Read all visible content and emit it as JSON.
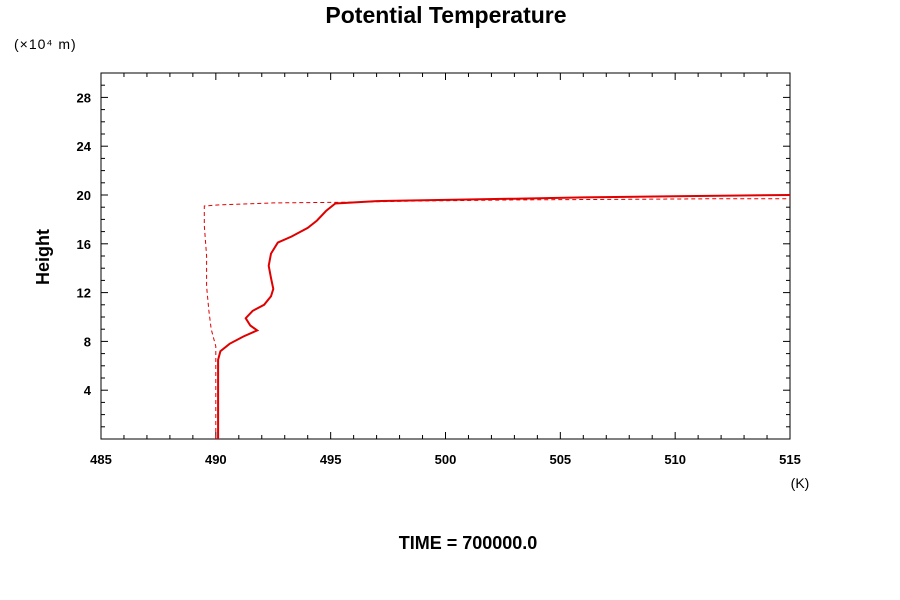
{
  "chart_data": {
    "type": "line",
    "title": "Potential Temperature",
    "ylabel": "Height",
    "y_unit": "(×10⁴ m)",
    "x_unit": "(K)",
    "footer": "TIME = 700000.0",
    "xlim": [
      485,
      515
    ],
    "ylim": [
      0,
      30
    ],
    "x_ticks": [
      485,
      490,
      495,
      500,
      505,
      510,
      515
    ],
    "y_ticks": [
      4,
      8,
      12,
      16,
      20,
      24,
      28
    ],
    "grid": false,
    "line_color": "#e00000",
    "series": [
      {
        "style": "solid",
        "points": [
          [
            490.1,
            0.0
          ],
          [
            490.1,
            6.5
          ],
          [
            490.2,
            7.2
          ],
          [
            490.6,
            7.8
          ],
          [
            491.2,
            8.4
          ],
          [
            491.8,
            8.9
          ],
          [
            491.5,
            9.3
          ],
          [
            491.3,
            9.9
          ],
          [
            491.6,
            10.5
          ],
          [
            492.1,
            11.0
          ],
          [
            492.4,
            11.7
          ],
          [
            492.5,
            12.3
          ],
          [
            492.4,
            13.2
          ],
          [
            492.3,
            14.2
          ],
          [
            492.4,
            15.2
          ],
          [
            492.7,
            16.1
          ],
          [
            493.3,
            16.6
          ],
          [
            494.0,
            17.3
          ],
          [
            494.4,
            17.9
          ],
          [
            494.8,
            18.7
          ],
          [
            495.2,
            19.3
          ],
          [
            497.0,
            19.5
          ],
          [
            500.0,
            19.6
          ],
          [
            503.0,
            19.7
          ],
          [
            506.0,
            19.8
          ],
          [
            510.0,
            19.9
          ],
          [
            515.0,
            20.0
          ]
        ]
      },
      {
        "style": "dashed",
        "points": [
          [
            490.0,
            0.0
          ],
          [
            490.0,
            7.6
          ],
          [
            489.8,
            9.0
          ],
          [
            489.7,
            10.5
          ],
          [
            489.6,
            12.5
          ],
          [
            489.6,
            15.0
          ],
          [
            489.5,
            17.5
          ],
          [
            489.5,
            19.1
          ],
          [
            490.2,
            19.2
          ],
          [
            492.5,
            19.35
          ],
          [
            495.5,
            19.4
          ],
          [
            498.5,
            19.5
          ],
          [
            503.0,
            19.6
          ],
          [
            508.0,
            19.65
          ],
          [
            512.0,
            19.7
          ],
          [
            515.0,
            19.7
          ]
        ]
      }
    ]
  }
}
